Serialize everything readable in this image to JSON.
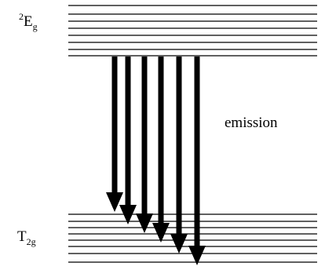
{
  "diagram": {
    "upper_state": {
      "sup": "2",
      "base": "E",
      "sub": "g",
      "level_count": 8
    },
    "lower_state": {
      "base": "T",
      "sub": "2g",
      "level_count": 8
    },
    "transition_label": "emission",
    "arrow_count": 6,
    "colors": {
      "line": "#000000",
      "background": "#ffffff"
    }
  }
}
